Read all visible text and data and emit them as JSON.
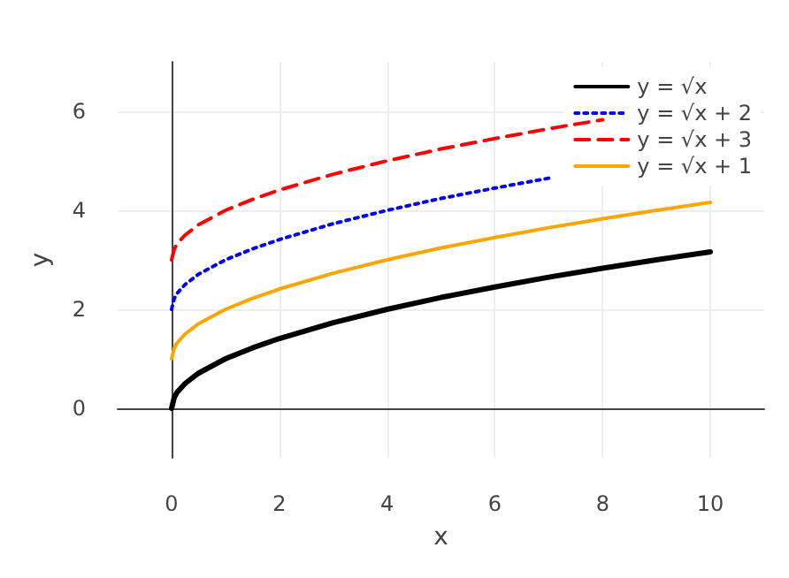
{
  "chart_data": {
    "type": "line",
    "xlabel": "x",
    "ylabel": "y",
    "x": [
      0,
      0.05,
      0.1,
      0.25,
      0.5,
      1,
      1.5,
      2,
      3,
      4,
      5,
      6,
      7,
      8,
      9,
      10
    ],
    "series": [
      {
        "name": "y = √x",
        "color": "#000000",
        "line_style": "solid",
        "values": [
          0,
          0.22,
          0.32,
          0.5,
          0.71,
          1,
          1.22,
          1.41,
          1.73,
          2,
          2.24,
          2.45,
          2.65,
          2.83,
          3,
          3.16
        ]
      },
      {
        "name": "y = √x + 2",
        "color": "#0000ff",
        "line_style": "dotted",
        "values": [
          2,
          2.22,
          2.32,
          2.5,
          2.71,
          3,
          3.22,
          3.41,
          3.73,
          4,
          4.24,
          4.45,
          4.65,
          null,
          null,
          null
        ]
      },
      {
        "name": "y = √x + 3",
        "color": "#ff0000",
        "line_style": "dashed",
        "values": [
          3,
          3.22,
          3.32,
          3.5,
          3.71,
          4,
          4.22,
          4.41,
          4.73,
          5,
          5.24,
          5.45,
          5.65,
          5.83,
          null,
          null
        ]
      },
      {
        "name": "y = √x + 1",
        "color": "#ffa500",
        "line_style": "solid",
        "values": [
          1,
          1.22,
          1.32,
          1.5,
          1.71,
          2,
          2.22,
          2.41,
          2.73,
          3,
          3.24,
          3.45,
          3.65,
          3.83,
          4,
          4.16
        ]
      }
    ],
    "xlim": [
      -1,
      11
    ],
    "ylim": [
      -1,
      7
    ],
    "xticks": [
      0,
      2,
      4,
      6,
      8,
      10
    ],
    "yticks": [
      0,
      2,
      4,
      6
    ],
    "grid": true,
    "legend": "top right",
    "marker": "none"
  }
}
